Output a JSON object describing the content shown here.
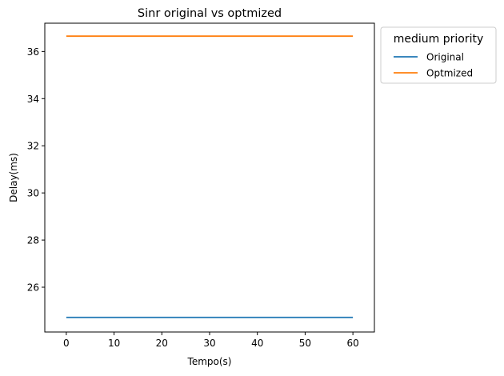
{
  "chart_data": {
    "type": "line",
    "title": "Sinr original vs optmized",
    "xlabel": "Tempo(s)",
    "ylabel": "Delay(ms)",
    "xlim": [
      -4.5,
      64.5
    ],
    "ylim": [
      24.1,
      37.2
    ],
    "xticks": [
      0,
      10,
      20,
      30,
      40,
      50,
      60
    ],
    "yticks": [
      26,
      28,
      30,
      32,
      34,
      36
    ],
    "grid": false,
    "legend": {
      "title": "medium priority",
      "placement": "outside-top-right"
    },
    "series": [
      {
        "name": "Original",
        "color": "#1f77b4",
        "x": [
          0,
          60
        ],
        "y": [
          24.72,
          24.72
        ]
      },
      {
        "name": "Optmized",
        "color": "#ff7f0e",
        "x": [
          0,
          60
        ],
        "y": [
          36.65,
          36.65
        ]
      }
    ]
  }
}
